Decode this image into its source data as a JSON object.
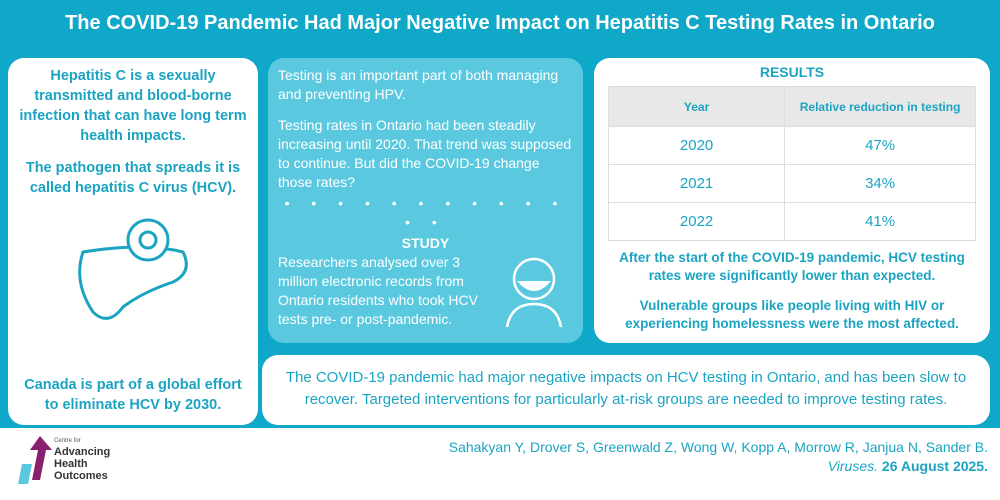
{
  "title": "The COVID-19 Pandemic Had Major Negative Impact on Hepatitis C Testing Rates in Ontario",
  "left": {
    "p1": "Hepatitis C is a sexually transmitted and blood-borne infection that can have long term health impacts.",
    "p2": "The pathogen that spreads it is called hepatitis C virus (HCV).",
    "p3": "Canada is part of a global effort to eliminate HCV by 2030."
  },
  "mid": {
    "p1": "Testing is an important part of both managing and preventing HPV.",
    "p2": "Testing rates in Ontario had been steadily increasing until 2020. That trend was supposed to continue. But did the COVID-19 change those rates?",
    "dots": "• • • • • • • • • • • • •",
    "study_heading": "STUDY",
    "study": "Researchers analysed over 3 million electronic records from Ontario residents who took HCV tests pre- or post-pandemic."
  },
  "results": {
    "heading": "RESULTS",
    "col1": "Year",
    "col2": "Relative reduction in testing",
    "rows": [
      {
        "year": "2020",
        "value": "47%"
      },
      {
        "year": "2021",
        "value": "34%"
      },
      {
        "year": "2022",
        "value": "41%"
      }
    ],
    "p1": "After the start of the COVID-19 pandemic, HCV testing rates were significantly lower than expected.",
    "p2": "Vulnerable groups like people living with HIV or experiencing homelessness were the most affected."
  },
  "conclusion": "The COVID-19 pandemic had major negative impacts on HCV testing in Ontario, and has been slow to recover. Targeted interventions for particularly at-risk groups are needed to improve testing rates.",
  "citation": {
    "authors": "Sahakyan Y, Drover S, Greenwald Z, Wong W, Kopp A, Morrow R, Janjua N, Sander B.",
    "journal": "Viruses.",
    "date": "26 August 2025."
  },
  "logo": {
    "l1": "Centre for",
    "l2": "Advancing",
    "l3": "Health",
    "l4": "Outcomes"
  }
}
